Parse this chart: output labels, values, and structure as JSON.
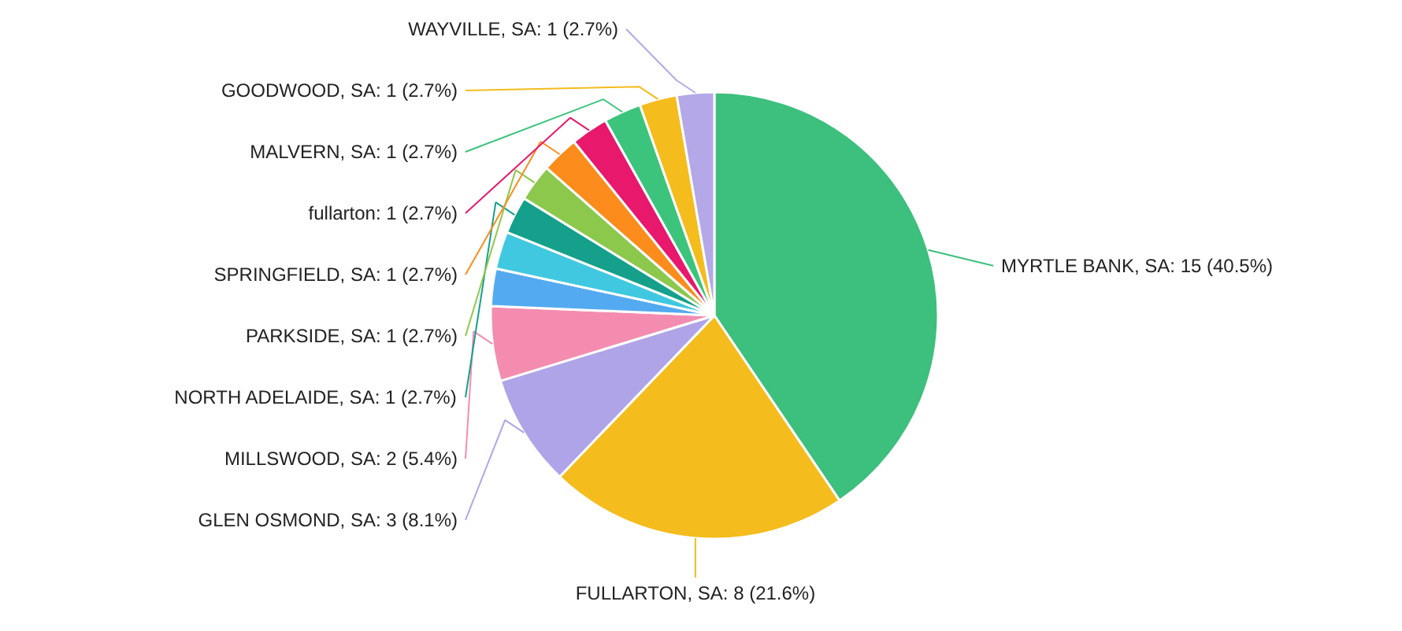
{
  "chart_data": {
    "type": "pie",
    "categories": [
      "MYRTLE BANK, SA",
      "FULLARTON, SA",
      "GLEN OSMOND, SA",
      "MILLSWOOD, SA",
      null,
      null,
      "NORTH ADELAIDE, SA",
      "PARKSIDE, SA",
      "SPRINGFIELD, SA",
      "fullarton",
      "MALVERN, SA",
      "GOODWOOD, SA",
      "WAYVILLE, SA"
    ],
    "values": [
      15,
      8,
      3,
      2,
      1,
      1,
      1,
      1,
      1,
      1,
      1,
      1,
      1
    ],
    "value_labels": [
      "15 (40.5%)",
      "8 (21.6%)",
      "3 (8.1%)",
      "2 (5.4%)",
      null,
      null,
      "1 (2.7%)",
      "1 (2.7%)",
      "1 (2.7%)",
      "1 (2.7%)",
      "1 (2.7%)",
      "1 (2.7%)",
      "1 (2.7%)"
    ],
    "colors": [
      "#3dbf7d",
      "#f4bc1c",
      "#b0a4e8",
      "#f48cb0",
      "#54aaf0",
      "#40c8e0",
      "#14a08a",
      "#8cc84c",
      "#fc8c1c",
      "#e8186c",
      "#3cc47c",
      "#f4bc1c",
      "#b4a8e8"
    ]
  }
}
